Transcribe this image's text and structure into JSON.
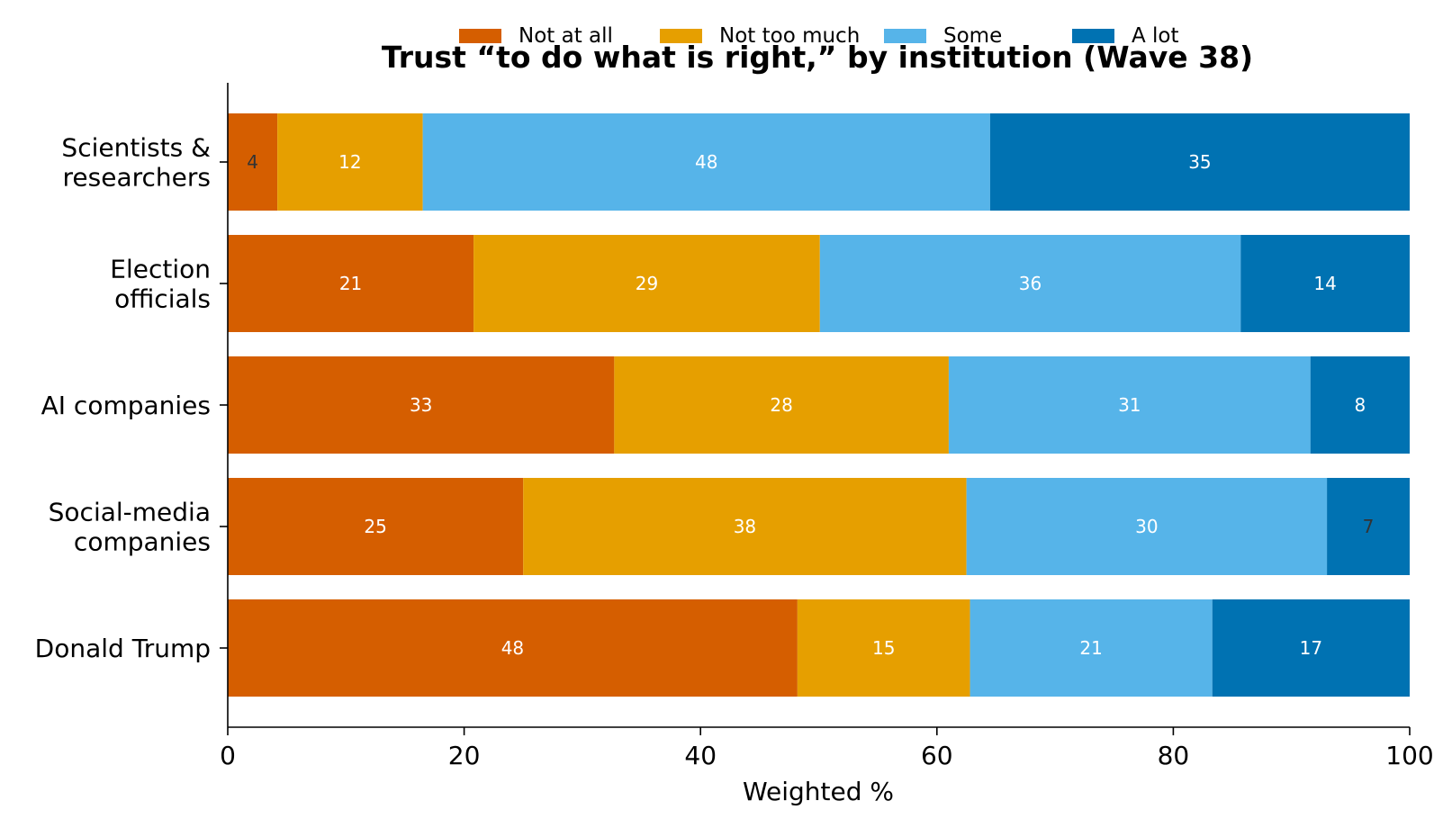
{
  "chart_data": {
    "type": "bar",
    "orientation": "horizontal",
    "stacked": true,
    "title": "Trust “to do what is right,” by institution (Wave 38)",
    "xlabel": "Weighted %",
    "ylabel": "",
    "xlim": [
      0,
      100
    ],
    "xticks": [
      "0",
      "20",
      "40",
      "60",
      "80",
      "100"
    ],
    "categories": [
      [
        "Scientists &",
        "researchers"
      ],
      [
        "Election",
        "officials"
      ],
      [
        "AI companies"
      ],
      [
        "Social-media",
        "companies"
      ],
      [
        "Donald Trump"
      ]
    ],
    "series": [
      {
        "name": "Not at all",
        "color": "#D55E00",
        "label_color": "#ffffff",
        "values": [
          4.2,
          20.8,
          32.7,
          25.0,
          48.2
        ]
      },
      {
        "name": "Not too much",
        "color": "#E69F00",
        "label_color": "#ffffff",
        "values": [
          12.3,
          29.3,
          28.3,
          37.5,
          14.6
        ]
      },
      {
        "name": "Some",
        "color": "#56B4E9",
        "label_color": "#ffffff",
        "values": [
          48.0,
          35.6,
          30.6,
          30.5,
          20.5
        ]
      },
      {
        "name": "A lot",
        "color": "#0072B2",
        "label_color": "#ffffff",
        "values": [
          35.5,
          14.3,
          8.4,
          7.0,
          16.7
        ]
      }
    ],
    "data_labels": [
      [
        "4",
        "21",
        "33",
        "25",
        "48"
      ],
      [
        "12",
        "29",
        "28",
        "38",
        "15"
      ],
      [
        "48",
        "36",
        "31",
        "30",
        "21"
      ],
      [
        "35",
        "14",
        "8",
        "7",
        "17"
      ]
    ],
    "dark_label_cells": [
      [
        0,
        0
      ],
      [
        3,
        3
      ]
    ],
    "grid": false,
    "legend_position": "top-center"
  }
}
